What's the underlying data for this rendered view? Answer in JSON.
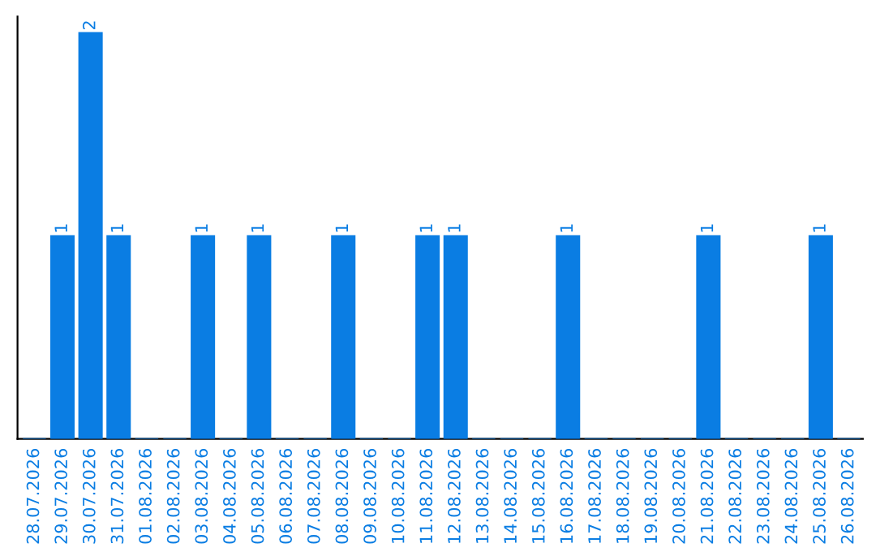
{
  "chart_data": {
    "type": "bar",
    "categories": [
      "28.07.2026",
      "29.07.2026",
      "30.07.2026",
      "31.07.2026",
      "01.08.2026",
      "02.08.2026",
      "03.08.2026",
      "04.08.2026",
      "05.08.2026",
      "06.08.2026",
      "07.08.2026",
      "08.08.2026",
      "09.08.2026",
      "10.08.2026",
      "11.08.2026",
      "12.08.2026",
      "13.08.2026",
      "14.08.2026",
      "15.08.2026",
      "16.08.2026",
      "17.08.2026",
      "18.08.2026",
      "19.08.2026",
      "20.08.2026",
      "21.08.2026",
      "22.08.2026",
      "23.08.2026",
      "24.08.2026",
      "25.08.2026",
      "26.08.2026"
    ],
    "values": [
      0,
      1,
      2,
      1,
      0,
      0,
      1,
      0,
      1,
      0,
      0,
      1,
      0,
      0,
      1,
      1,
      0,
      0,
      0,
      1,
      0,
      0,
      0,
      0,
      1,
      0,
      0,
      0,
      1,
      0
    ],
    "value_labels": [
      null,
      "1",
      "2",
      "1",
      null,
      null,
      "1",
      null,
      "1",
      null,
      null,
      "1",
      null,
      null,
      "1",
      "1",
      null,
      null,
      null,
      "1",
      null,
      null,
      null,
      null,
      "1",
      null,
      null,
      null,
      "1",
      null
    ],
    "color": "#0a7de3",
    "relative": false,
    "grid": false,
    "legend": false
  }
}
